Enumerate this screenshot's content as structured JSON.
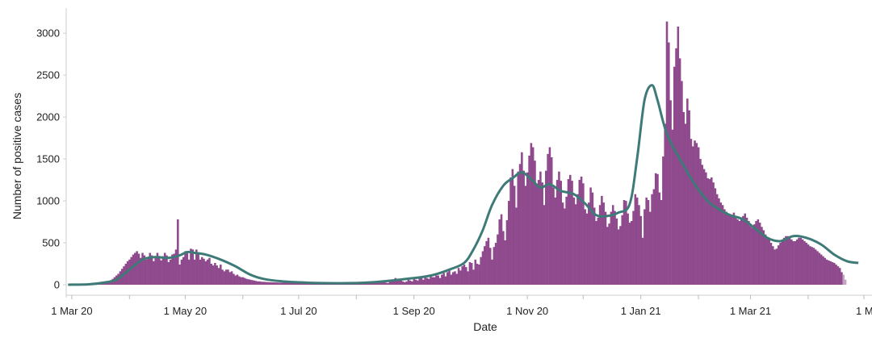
{
  "chart_data": {
    "type": "bar",
    "title": "",
    "xlabel": "Date",
    "ylabel": "Number of positive cases",
    "ylim": [
      0,
      3300
    ],
    "xlim": [
      "2020-02-27",
      "2021-05-01"
    ],
    "y_ticks": [
      0,
      500,
      1000,
      1500,
      2000,
      2500,
      3000
    ],
    "x_ticks": [
      {
        "date": "2020-03-01",
        "label": "1 Mar 20"
      },
      {
        "date": "2020-05-01",
        "label": "1 May 20"
      },
      {
        "date": "2020-07-01",
        "label": "1 Jul 20"
      },
      {
        "date": "2020-09-01",
        "label": "1 Sep 20"
      },
      {
        "date": "2020-11-01",
        "label": "1 Nov 20"
      },
      {
        "date": "2021-01-01",
        "label": "1 Jan 21"
      },
      {
        "date": "2021-03-01",
        "label": "1 Mar 21"
      },
      {
        "date": "2021-05-01",
        "label": "1 M"
      }
    ],
    "grid": false,
    "bar_color": "#8e4a8c",
    "incomplete_bar_color": "#c3a3c2",
    "line_color": "#3e7a78",
    "series": [
      {
        "kind": "bar",
        "x_start": "2020-02-28",
        "frequency": "daily",
        "values": [
          0,
          0,
          0,
          1,
          1,
          2,
          2,
          3,
          3,
          4,
          5,
          6,
          8,
          10,
          12,
          14,
          16,
          20,
          25,
          30,
          35,
          30,
          40,
          55,
          70,
          90,
          110,
          130,
          160,
          190,
          220,
          250,
          280,
          300,
          330,
          360,
          380,
          400,
          370,
          320,
          380,
          350,
          300,
          330,
          380,
          350,
          280,
          330,
          380,
          320,
          290,
          340,
          380,
          350,
          270,
          300,
          360,
          370,
          420,
          780,
          240,
          300,
          330,
          400,
          380,
          300,
          430,
          420,
          300,
          420,
          380,
          300,
          330,
          310,
          280,
          300,
          320,
          250,
          230,
          260,
          230,
          200,
          240,
          180,
          160,
          180,
          180,
          150,
          160,
          130,
          110,
          120,
          100,
          90,
          90,
          80,
          70,
          65,
          60,
          55,
          50,
          45,
          40,
          40,
          36,
          35,
          34,
          32,
          30,
          30,
          29,
          28,
          27,
          26,
          25,
          25,
          24,
          24,
          23,
          23,
          22,
          22,
          21,
          21,
          20,
          20,
          20,
          19,
          19,
          19,
          18,
          18,
          18,
          17,
          17,
          17,
          17,
          17,
          17,
          17,
          17,
          17,
          17,
          17,
          18,
          18,
          18,
          18,
          19,
          19,
          20,
          20,
          20,
          21,
          21,
          22,
          22,
          23,
          23,
          24,
          24,
          25,
          25,
          26,
          27,
          28,
          30,
          30,
          32,
          32,
          30,
          25,
          20,
          40,
          50,
          60,
          80,
          70,
          60,
          50,
          40,
          30,
          40,
          60,
          50,
          40,
          70,
          60,
          50,
          80,
          100,
          60,
          110,
          80,
          70,
          100,
          90,
          90,
          110,
          110,
          80,
          120,
          140,
          100,
          150,
          170,
          120,
          150,
          160,
          130,
          200,
          170,
          220,
          240,
          210,
          160,
          270,
          260,
          180,
          300,
          250,
          240,
          330,
          400,
          460,
          520,
          560,
          440,
          300,
          450,
          500,
          600,
          780,
          840,
          640,
          530,
          770,
          1000,
          1280,
          1380,
          1180,
          920,
          1350,
          1440,
          1580,
          1360,
          1180,
          1340,
          1540,
          1690,
          1640,
          1480,
          1200,
          1250,
          1350,
          1220,
          950,
          1360,
          1560,
          1640,
          1520,
          1160,
          1040,
          1250,
          1350,
          1240,
          980,
          910,
          1050,
          1260,
          1310,
          1240,
          1040,
          960,
          1080,
          1250,
          1290,
          1210,
          900,
          850,
          980,
          1160,
          1100,
          920,
          760,
          800,
          950,
          1060,
          980,
          870,
          690,
          730,
          870,
          950,
          880,
          790,
          660,
          700,
          830,
          1010,
          1000,
          850,
          740,
          760,
          880,
          1080,
          1040,
          950,
          820,
          560,
          900,
          1040,
          1010,
          870,
          1080,
          1140,
          1330,
          1320,
          1100,
          1010,
          1530,
          1920,
          3140,
          2890,
          2200,
          1850,
          2600,
          2820,
          3080,
          2700,
          2430,
          2060,
          1920,
          2220,
          2080,
          1740,
          1650,
          1720,
          1690,
          1640,
          1500,
          1430,
          1380,
          1340,
          1270,
          1260,
          1280,
          1220,
          1150,
          1080,
          1030,
          980,
          950,
          900,
          870,
          850,
          840,
          830,
          860,
          820,
          780,
          760,
          780,
          820,
          850,
          800,
          760,
          700,
          680,
          720,
          760,
          780,
          740,
          690,
          650,
          600,
          560,
          540,
          500,
          460,
          420,
          430,
          470,
          500,
          540,
          560,
          580,
          580,
          560,
          540,
          520,
          520,
          540,
          560,
          560,
          540,
          520,
          500,
          480,
          460,
          450,
          440,
          420,
          400,
          380,
          360,
          340,
          320,
          300,
          290,
          280,
          270,
          260,
          240,
          220,
          200,
          150
        ],
        "incomplete_tail_days": 2,
        "incomplete_values": [
          120,
          60
        ]
      },
      {
        "kind": "line",
        "smoothing": "7-day rolling average",
        "points": [
          [
            "2020-02-28",
            0
          ],
          [
            "2020-03-10",
            5
          ],
          [
            "2020-03-18",
            25
          ],
          [
            "2020-03-25",
            60
          ],
          [
            "2020-04-01",
            180
          ],
          [
            "2020-04-08",
            300
          ],
          [
            "2020-04-15",
            330
          ],
          [
            "2020-04-22",
            320
          ],
          [
            "2020-04-28",
            350
          ],
          [
            "2020-05-02",
            390
          ],
          [
            "2020-05-06",
            380
          ],
          [
            "2020-05-12",
            360
          ],
          [
            "2020-05-20",
            300
          ],
          [
            "2020-05-28",
            220
          ],
          [
            "2020-06-05",
            120
          ],
          [
            "2020-06-12",
            70
          ],
          [
            "2020-06-22",
            40
          ],
          [
            "2020-07-05",
            25
          ],
          [
            "2020-07-20",
            18
          ],
          [
            "2020-08-01",
            20
          ],
          [
            "2020-08-10",
            30
          ],
          [
            "2020-08-20",
            50
          ],
          [
            "2020-08-28",
            70
          ],
          [
            "2020-09-05",
            90
          ],
          [
            "2020-09-12",
            120
          ],
          [
            "2020-09-20",
            180
          ],
          [
            "2020-09-28",
            260
          ],
          [
            "2020-10-03",
            420
          ],
          [
            "2020-10-08",
            650
          ],
          [
            "2020-10-13",
            950
          ],
          [
            "2020-10-19",
            1180
          ],
          [
            "2020-10-24",
            1270
          ],
          [
            "2020-10-29",
            1340
          ],
          [
            "2020-11-03",
            1260
          ],
          [
            "2020-11-08",
            1160
          ],
          [
            "2020-11-13",
            1200
          ],
          [
            "2020-11-19",
            1120
          ],
          [
            "2020-11-26",
            1080
          ],
          [
            "2020-12-02",
            970
          ],
          [
            "2020-12-08",
            830
          ],
          [
            "2020-12-14",
            820
          ],
          [
            "2020-12-20",
            860
          ],
          [
            "2020-12-26",
            960
          ],
          [
            "2020-12-30",
            1500
          ],
          [
            "2021-01-03",
            2200
          ],
          [
            "2021-01-07",
            2380
          ],
          [
            "2021-01-10",
            2200
          ],
          [
            "2021-01-15",
            1800
          ],
          [
            "2021-01-22",
            1500
          ],
          [
            "2021-01-30",
            1200
          ],
          [
            "2021-02-06",
            1000
          ],
          [
            "2021-02-12",
            900
          ],
          [
            "2021-02-18",
            830
          ],
          [
            "2021-02-25",
            780
          ],
          [
            "2021-03-03",
            680
          ],
          [
            "2021-03-10",
            560
          ],
          [
            "2021-03-17",
            520
          ],
          [
            "2021-03-24",
            580
          ],
          [
            "2021-03-31",
            560
          ],
          [
            "2021-04-08",
            480
          ],
          [
            "2021-04-15",
            360
          ],
          [
            "2021-04-22",
            280
          ],
          [
            "2021-04-28",
            260
          ]
        ]
      }
    ]
  }
}
